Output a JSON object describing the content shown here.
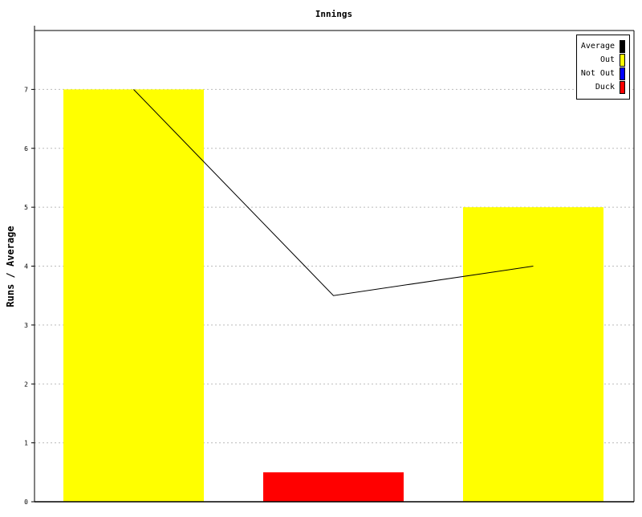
{
  "chart_data": {
    "type": "bar",
    "title": "Innings",
    "xlabel": "",
    "ylabel": "Runs / Average",
    "ylim": [
      0,
      8
    ],
    "yticks": [
      0,
      1,
      2,
      3,
      4,
      5,
      6,
      7
    ],
    "grid": true,
    "legend_placement": "top-right",
    "categories": [
      "",
      "",
      ""
    ],
    "bars": [
      {
        "value": 7,
        "type": "Out"
      },
      {
        "value": 0.5,
        "type": "Duck"
      },
      {
        "value": 5,
        "type": "Out"
      }
    ],
    "average_line": {
      "name": "Average",
      "values": [
        7,
        3.5,
        4
      ]
    },
    "legend": [
      {
        "name": "Average",
        "color": "#000000"
      },
      {
        "name": "Out",
        "color": "#ffff00"
      },
      {
        "name": "Not Out",
        "color": "#0000ff"
      },
      {
        "name": "Duck",
        "color": "#ff0000"
      }
    ]
  }
}
